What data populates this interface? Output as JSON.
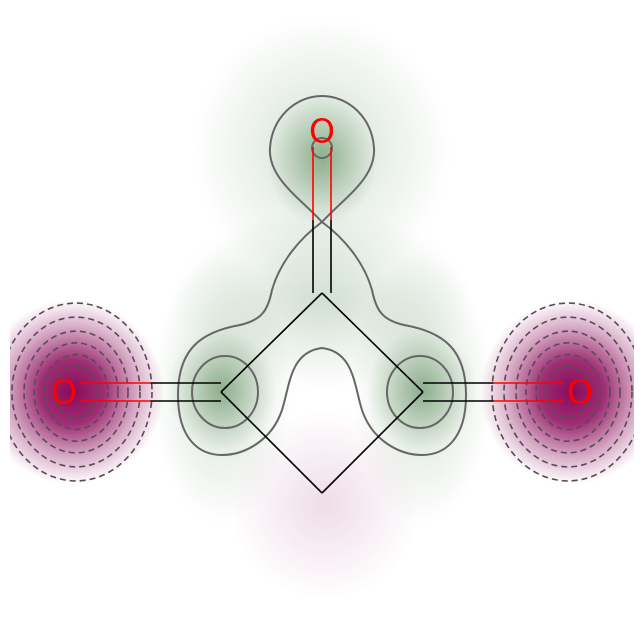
{
  "molecule": {
    "atoms": [
      {
        "id": "o_top",
        "element": "O",
        "label": "O",
        "color": "#ff0000"
      },
      {
        "id": "o_left",
        "element": "O",
        "label": "O",
        "color": "#ff0000"
      },
      {
        "id": "o_right",
        "element": "O",
        "label": "O",
        "color": "#ff0000"
      },
      {
        "id": "c_top",
        "element": "C",
        "label": ""
      },
      {
        "id": "c_left",
        "element": "C",
        "label": ""
      },
      {
        "id": "c_right",
        "element": "C",
        "label": ""
      },
      {
        "id": "c_bottom",
        "element": "C",
        "label": ""
      }
    ],
    "bonds": [
      {
        "from": "c_top",
        "to": "o_top",
        "order": 2
      },
      {
        "from": "c_left",
        "to": "o_left",
        "order": 2
      },
      {
        "from": "c_right",
        "to": "o_right",
        "order": 2
      },
      {
        "from": "c_top",
        "to": "c_left",
        "order": 1
      },
      {
        "from": "c_top",
        "to": "c_right",
        "order": 1
      },
      {
        "from": "c_left",
        "to": "c_bottom",
        "order": 1
      },
      {
        "from": "c_right",
        "to": "c_bottom",
        "order": 1
      }
    ]
  },
  "colors": {
    "bond": "#000000",
    "heteroatom": "#ff0000",
    "positive_region": "#2e6b2e",
    "negative_region": "#8b0a5a",
    "contour": "#555555"
  }
}
